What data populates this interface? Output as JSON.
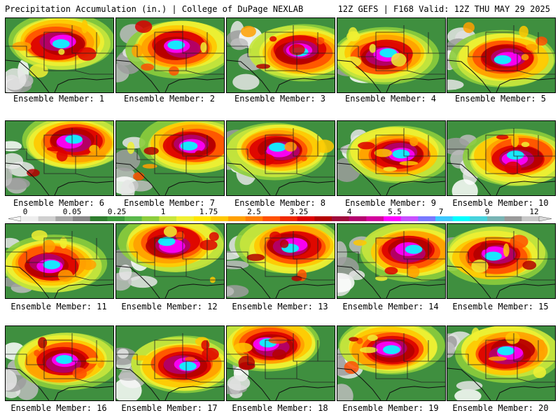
{
  "header": {
    "title": "Precipitation Accumulation (in.) | College of DuPage NEXLAB",
    "run_info": "12Z GEFS | F168 Valid: 12Z THU MAY 29 2025"
  },
  "colorbar": {
    "tick_labels": [
      "0",
      "0.05",
      "0.25",
      "1",
      "1.75",
      "2.5",
      "3.25",
      "4",
      "5.5",
      "7",
      "9",
      "12"
    ],
    "colors": [
      "#eeeeee",
      "#cfcfcf",
      "#a8a8a8",
      "#888888",
      "#2e7d2e",
      "#3c9a3c",
      "#59b84a",
      "#8ccd3c",
      "#c8e63c",
      "#f0f032",
      "#ffe600",
      "#ffc800",
      "#ffa000",
      "#ff7d00",
      "#ff5000",
      "#f02800",
      "#dc0000",
      "#b40000",
      "#a00a3c",
      "#b4006e",
      "#d2009c",
      "#ff00ff",
      "#c850ff",
      "#7878ff",
      "#3cc8ff",
      "#00ffff",
      "#46d2dc",
      "#78b4b4",
      "#9a9a9a",
      "#c8c8c8"
    ]
  },
  "panels": [
    {
      "label": "Ensemble Member: 1"
    },
    {
      "label": "Ensemble Member: 2"
    },
    {
      "label": "Ensemble Member: 3"
    },
    {
      "label": "Ensemble Member: 4"
    },
    {
      "label": "Ensemble Member: 5"
    },
    {
      "label": "Ensemble Member: 6"
    },
    {
      "label": "Ensemble Member: 7"
    },
    {
      "label": "Ensemble Member: 8"
    },
    {
      "label": "Ensemble Member: 9"
    },
    {
      "label": "Ensemble Member: 10"
    },
    {
      "label": "Ensemble Member: 11"
    },
    {
      "label": "Ensemble Member: 12"
    },
    {
      "label": "Ensemble Member: 13"
    },
    {
      "label": "Ensemble Member: 14"
    },
    {
      "label": "Ensemble Member: 15"
    },
    {
      "label": "Ensemble Member: 16"
    },
    {
      "label": "Ensemble Member: 17"
    },
    {
      "label": "Ensemble Member: 18"
    },
    {
      "label": "Ensemble Member: 19"
    },
    {
      "label": "Ensemble Member: 20"
    }
  ]
}
